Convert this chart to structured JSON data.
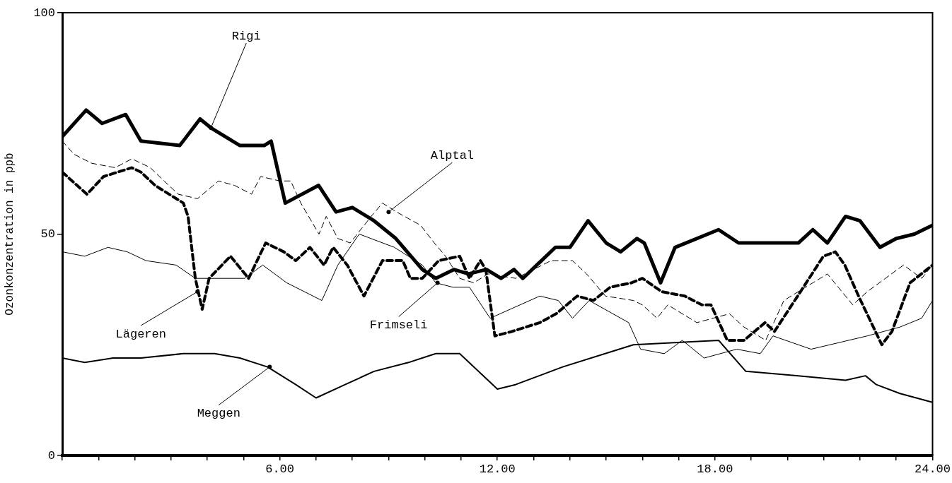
{
  "chart_data": {
    "type": "line",
    "ylabel": "Ozonkonzentration in ppb",
    "xlim": [
      0,
      24
    ],
    "ylim": [
      0,
      100
    ],
    "xticks": [
      {
        "value": 0,
        "label": null
      },
      {
        "value": 1,
        "label": null
      },
      {
        "value": 2,
        "label": null
      },
      {
        "value": 3,
        "label": null
      },
      {
        "value": 4,
        "label": null
      },
      {
        "value": 5,
        "label": null
      },
      {
        "value": 6,
        "label": "6.00"
      },
      {
        "value": 7,
        "label": null
      },
      {
        "value": 8,
        "label": null
      },
      {
        "value": 9,
        "label": null
      },
      {
        "value": 10,
        "label": null
      },
      {
        "value": 11,
        "label": null
      },
      {
        "value": 12,
        "label": "12.00"
      },
      {
        "value": 13,
        "label": null
      },
      {
        "value": 14,
        "label": null
      },
      {
        "value": 15,
        "label": null
      },
      {
        "value": 16,
        "label": null
      },
      {
        "value": 17,
        "label": null
      },
      {
        "value": 18,
        "label": "18.00"
      },
      {
        "value": 19,
        "label": null
      },
      {
        "value": 20,
        "label": null
      },
      {
        "value": 21,
        "label": null
      },
      {
        "value": 22,
        "label": null
      },
      {
        "value": 23,
        "label": null
      },
      {
        "value": 24,
        "label": "24.00"
      }
    ],
    "yticks": [
      0,
      50,
      100
    ],
    "grid": false,
    "legend": false,
    "marker": "none",
    "series": [
      {
        "color": "#000000",
        "line_style": "solid",
        "x": [
          0,
          0.66,
          1.1,
          1.75,
          2.17,
          3.24,
          3.8,
          4.1,
          4.9,
          5.57,
          5.76,
          6.15,
          7.07,
          7.55,
          8,
          8.6,
          9.2,
          9.93,
          10.3,
          10.8,
          11.2,
          11.7,
          12.1,
          12.46,
          12.7,
          13.6,
          14,
          14.5,
          15,
          15.4,
          15.85,
          16.05,
          16.5,
          16.9,
          18.1,
          18.65,
          20.3,
          20.7,
          21.1,
          21.6,
          22,
          22.55,
          23,
          23.5,
          24
        ],
        "values": [
          72,
          78,
          75,
          77,
          71,
          70,
          76,
          74,
          70,
          70,
          71,
          57,
          61,
          55,
          56,
          53,
          49,
          42,
          40,
          42,
          41,
          42,
          40,
          42,
          40,
          47,
          47,
          53,
          48,
          46,
          49,
          48,
          39,
          47,
          51,
          48,
          48,
          51,
          48,
          54,
          53,
          47,
          49,
          50,
          52
        ]
      },
      {
        "color": "#000000",
        "line_style": "dashed",
        "x": [
          0,
          0.33,
          0.81,
          1.46,
          1.92,
          2.43,
          2.81,
          3.2,
          3.73,
          4.31,
          4.75,
          5.22,
          5.47,
          6,
          6.3,
          6.58,
          7.08,
          7.28,
          7.6,
          7.94,
          8.52,
          8.83,
          9.22,
          9.88,
          10.26,
          10.57,
          10.96,
          11.35,
          11.74,
          12.51,
          13.48,
          14.07,
          14.46,
          14.98,
          15.75,
          16,
          16.4,
          16.7,
          17.5,
          17.95,
          18.4,
          18.8,
          19.4,
          19.9,
          20.7,
          21.1,
          21.6,
          21.8,
          22.2,
          22.7,
          23.2,
          23.7,
          24
        ],
        "values": [
          71,
          68,
          66,
          65,
          67,
          65,
          62,
          59,
          58,
          62,
          61,
          59,
          63,
          62,
          62,
          57,
          50,
          54,
          49,
          48,
          54,
          57,
          55,
          52,
          48,
          45,
          40,
          39,
          41,
          40,
          44,
          44,
          41,
          36,
          35,
          34,
          31,
          34,
          30,
          31,
          32,
          29,
          26,
          35,
          39,
          41,
          36,
          34,
          37,
          40,
          43,
          40,
          43
        ]
      },
      {
        "color": "#000000",
        "line_style": "dashed",
        "x": [
          0,
          0.68,
          1.14,
          1.92,
          2.17,
          2.56,
          3.34,
          3.47,
          3.67,
          3.86,
          4.05,
          4.64,
          5.14,
          5.61,
          6.11,
          6.44,
          6.83,
          7.22,
          7.47,
          7.86,
          8.32,
          8.83,
          9.39,
          9.6,
          9.93,
          10.38,
          10.96,
          11.23,
          11.53,
          11.68,
          11.93,
          12.4,
          13.17,
          13.62,
          14.2,
          14.65,
          15.11,
          15.7,
          16,
          16.53,
          17.17,
          17.64,
          17.89,
          18.34,
          18.8,
          19.38,
          19.64,
          20.28,
          20.99,
          21.32,
          21.58,
          21.96,
          22.6,
          22.88,
          23.38,
          24
        ],
        "values": [
          64,
          59,
          63,
          65,
          64,
          61,
          57,
          54,
          40,
          33,
          40,
          45,
          40,
          48,
          46,
          44,
          47,
          43,
          47,
          43,
          36,
          44,
          44,
          40,
          40,
          44,
          45,
          40,
          44,
          42,
          27,
          28,
          30,
          32,
          36,
          35,
          38,
          39,
          40,
          37,
          36,
          34,
          34,
          26,
          26,
          30,
          28,
          36,
          45,
          46,
          43,
          36,
          25,
          28,
          39,
          43
        ]
      },
      {
        "color": "#000000",
        "line_style": "solid",
        "x": [
          0,
          0.62,
          1.26,
          1.79,
          2.31,
          3.14,
          3.67,
          5.03,
          5.53,
          6.19,
          7.16,
          7.6,
          8.19,
          9.16,
          9.93,
          10.3,
          10.77,
          11.23,
          11.8,
          13.17,
          13.68,
          14.07,
          14.53,
          15.62,
          15.95,
          16.6,
          17.1,
          17.7,
          18.6,
          19.25,
          19.6,
          20.65,
          22.2,
          23.1,
          23.7,
          24
        ],
        "values": [
          46,
          45,
          47,
          46,
          44,
          43,
          40,
          40,
          43,
          39,
          35,
          43,
          50,
          47,
          43,
          39,
          38,
          38,
          31,
          36,
          35,
          31,
          35,
          30,
          24,
          23,
          26,
          22,
          24,
          23,
          27,
          24,
          27,
          29,
          31,
          35
        ]
      },
      {
        "color": "#000000",
        "line_style": "solid",
        "x": [
          0,
          0.62,
          1.4,
          2.17,
          3.34,
          4.2,
          4.9,
          5.66,
          6.44,
          7,
          7.8,
          8.6,
          9.55,
          10.3,
          10.96,
          12,
          12.5,
          13.8,
          15.75,
          18.1,
          18.85,
          20.3,
          21.6,
          22.15,
          22.45,
          23.1,
          24
        ],
        "values": [
          22,
          21,
          22,
          22,
          23,
          23,
          22,
          20,
          16,
          13,
          16,
          19,
          21,
          23,
          23,
          15,
          16,
          20,
          25,
          26,
          19,
          18,
          17,
          18,
          16,
          14,
          12
        ]
      }
    ],
    "annotations": [
      {
        "text": "Rigi",
        "x": 4.1,
        "y": 74
      },
      {
        "text": "Alptal",
        "x": 9,
        "y": 55
      },
      {
        "text": "Lägeren",
        "x": 3.73,
        "y": 37
      },
      {
        "text": "Frimseli",
        "x": 10.35,
        "y": 39
      },
      {
        "text": "Meggen",
        "x": 5.72,
        "y": 20
      }
    ]
  }
}
